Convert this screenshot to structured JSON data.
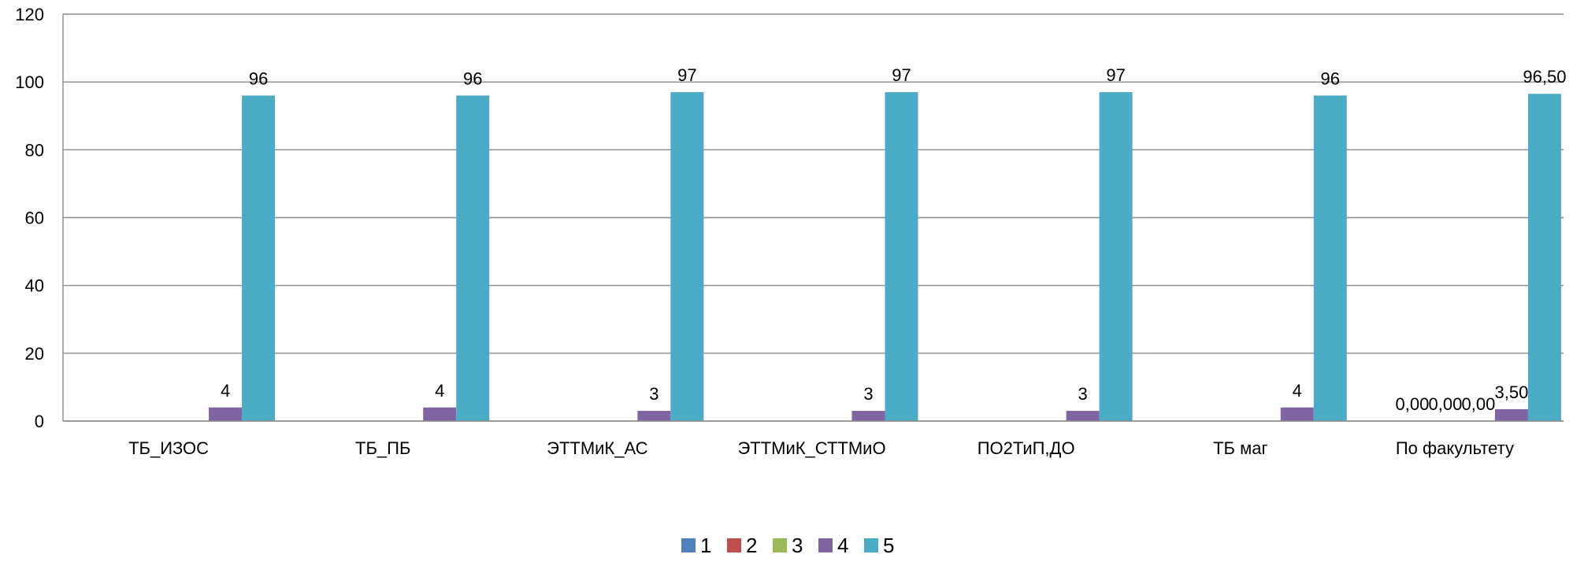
{
  "chart_data": {
    "type": "bar",
    "categories": [
      "ТБ_ИЗОС",
      "ТБ_ПБ",
      "ЭТТМиК_АС",
      "ЭТТМиК_СТТМиО",
      "ПО2ТиП,ДО",
      "ТБ маг",
      "По факультету"
    ],
    "series": [
      {
        "name": "1",
        "color": "#4F81BD",
        "values": [
          0,
          0,
          0,
          0,
          0,
          0,
          0
        ],
        "labels": [
          "",
          "",
          "",
          "",
          "",
          "",
          "0,00"
        ]
      },
      {
        "name": "2",
        "color": "#C0504D",
        "values": [
          0,
          0,
          0,
          0,
          0,
          0,
          0
        ],
        "labels": [
          "",
          "",
          "",
          "",
          "",
          "",
          "0,00"
        ]
      },
      {
        "name": "3",
        "color": "#9BBB59",
        "values": [
          0,
          0,
          0,
          0,
          0,
          0,
          0
        ],
        "labels": [
          "",
          "",
          "",
          "",
          "",
          "",
          "0,00"
        ]
      },
      {
        "name": "4",
        "color": "#8064A2",
        "values": [
          4,
          4,
          3,
          3,
          3,
          4,
          3.5
        ],
        "labels": [
          "4",
          "4",
          "3",
          "3",
          "3",
          "4",
          "3,50"
        ]
      },
      {
        "name": "5",
        "color": "#4BACC6",
        "values": [
          96,
          96,
          97,
          97,
          97,
          96,
          96.5
        ],
        "labels": [
          "96",
          "96",
          "97",
          "97",
          "97",
          "96",
          "96,50"
        ]
      }
    ],
    "ylim": [
      0,
      120
    ],
    "yticks": [
      "0",
      "20",
      "40",
      "60",
      "80",
      "100",
      "120"
    ],
    "grid": true,
    "legend_position": "bottom",
    "title": "",
    "xlabel": "",
    "ylabel": ""
  }
}
